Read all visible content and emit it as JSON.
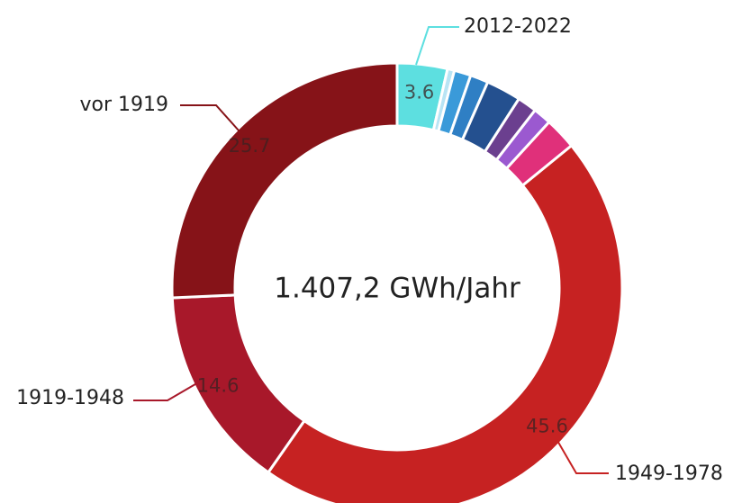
{
  "chart_data": {
    "type": "donut",
    "center_label": "1.407,2 GWh/Jahr",
    "categories": [
      "2012-2022",
      null,
      null,
      null,
      null,
      null,
      null,
      null,
      "1949-1978",
      "1919-1948",
      "vor 1919"
    ],
    "values": [
      3.6,
      0.5,
      1.2,
      1.3,
      2.5,
      1.4,
      1.3,
      2.3,
      45.6,
      14.6,
      25.7
    ],
    "colors": [
      "#5ddfe0",
      "#b8e4f4",
      "#3a9ad9",
      "#2f7fc4",
      "#24508f",
      "#6b3f8f",
      "#9b59d0",
      "#e0307a",
      "#c62222",
      "#a8182a",
      "#861318"
    ]
  }
}
